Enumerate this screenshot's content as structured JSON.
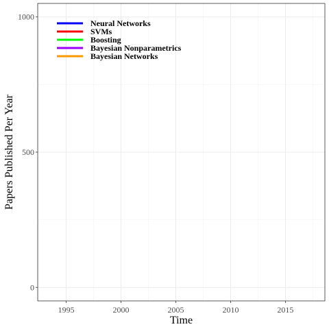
{
  "chart_data": {
    "type": "line",
    "title": "",
    "xlabel": "Time",
    "ylabel": "Papers Published Per Year",
    "xlim": [
      1992.4,
      2018.6
    ],
    "ylim": [
      -50,
      1050
    ],
    "x_ticks": [
      1995,
      2000,
      2005,
      2010,
      2015
    ],
    "y_ticks": [
      0,
      500,
      1000
    ],
    "x_minor_ticks": [
      1992.5,
      1997.5,
      2002.5,
      2007.5,
      2012.5,
      2017.5
    ],
    "y_minor_ticks": [
      250,
      750
    ],
    "grid": true,
    "legend_position": "top-left",
    "series": [
      {
        "name": "Neural Networks",
        "color": "#0000ff",
        "x": [],
        "y": []
      },
      {
        "name": "SVMs",
        "color": "#ff0000",
        "x": [],
        "y": []
      },
      {
        "name": "Boosting",
        "color": "#00ff00",
        "x": [],
        "y": []
      },
      {
        "name": "Bayesian Nonparametrics",
        "color": "#9900ff",
        "x": [],
        "y": []
      },
      {
        "name": "Bayesian Networks",
        "color": "#ff9900",
        "x": [],
        "y": []
      }
    ]
  }
}
